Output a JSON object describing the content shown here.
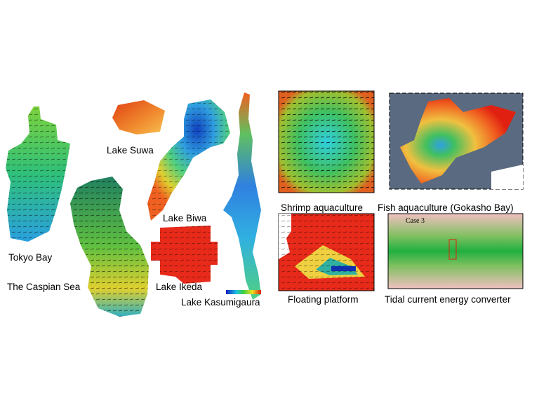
{
  "left_labels": [
    "Tokyo Bay",
    "The Caspian Sea",
    "Lake Suwa",
    "Lake Biwa",
    "Lake Ikeda",
    "Lake Kasumigaura"
  ],
  "right_labels": [
    "Shrimp aquaculture",
    "Fish aquaculture (Gokasho Bay)",
    "Floating platform",
    "Tidal current energy converter"
  ],
  "tidal_inset": "Case 3"
}
